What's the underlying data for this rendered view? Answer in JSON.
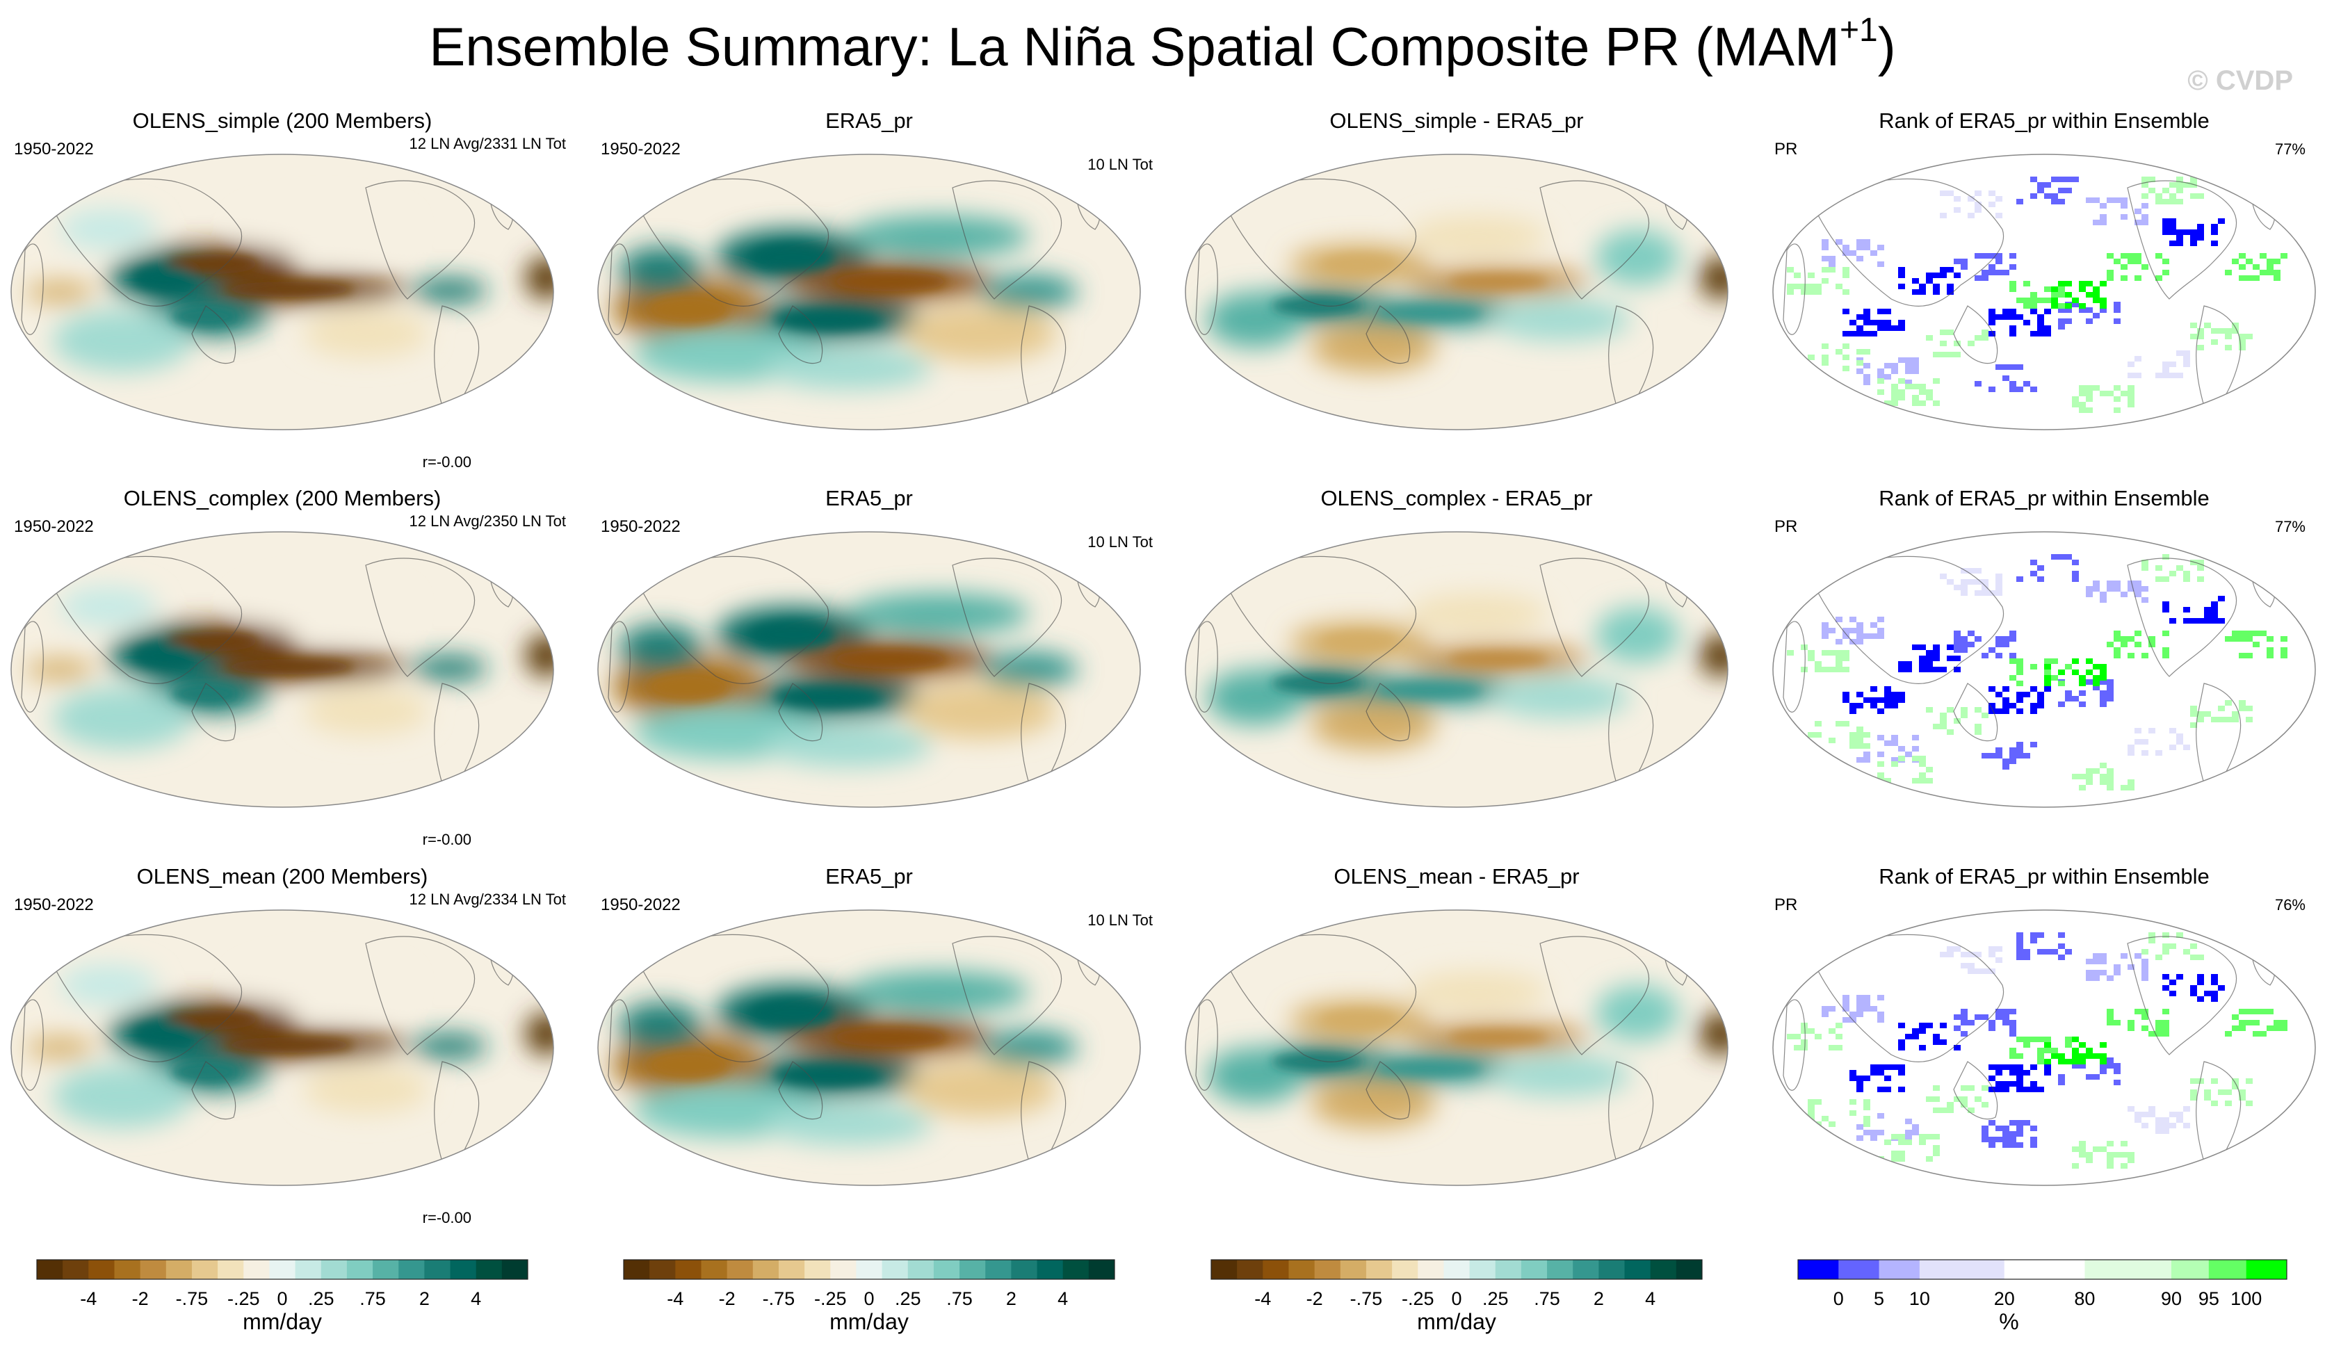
{
  "title_main": "Ensemble Summary: La Niña Spatial Composite PR (MAM",
  "title_sup": "+1",
  "title_close": ")",
  "watermark": "© CVDP",
  "chart_data": {
    "type": "heatmap",
    "variable": "PR",
    "season": "MAM+1",
    "colors": {
      "brown_green": [
        "#543005",
        "#6e400c",
        "#8c510a",
        "#a8711f",
        "#bf8b3f",
        "#d4ad66",
        "#e6c98f",
        "#f2e2bb",
        "#f6f0e2",
        "#e8f4f2",
        "#c7eae5",
        "#a2dbd2",
        "#80cdc1",
        "#57b2a6",
        "#35978f",
        "#1a7d75",
        "#01665e",
        "#00503f",
        "#003c30"
      ],
      "rank": [
        "#0000ff",
        "#6464ff",
        "#b4b4ff",
        "#e2e2fb",
        "#ffffff",
        "#e0fce0",
        "#b4ffb4",
        "#64ff64",
        "#00ff00"
      ]
    },
    "rows": [
      {
        "ens_title": "OLENS_simple (200 Members)",
        "ens_color": "#0c7a85",
        "period": "1950-2022",
        "ens_info": "12 LN Avg/2331 LN Tot",
        "r_value": "r=-0.00",
        "obs_title": "ERA5_pr",
        "obs_period": "1950-2022",
        "obs_info": "10 LN Tot",
        "diff_title": "OLENS_simple - ERA5_pr",
        "rank_title": "Rank of ERA5_pr within Ensemble",
        "rank_var": "PR",
        "rank_pct": "77%"
      },
      {
        "ens_title": "OLENS_complex (200 Members)",
        "ens_color": "#5e8a64",
        "period": "1950-2022",
        "ens_info": "12 LN Avg/2350 LN Tot",
        "r_value": "r=-0.00",
        "obs_title": "ERA5_pr",
        "obs_period": "1950-2022",
        "obs_info": "10 LN Tot",
        "diff_title": "OLENS_complex - ERA5_pr",
        "rank_title": "Rank of ERA5_pr within Ensemble",
        "rank_var": "PR",
        "rank_pct": "77%"
      },
      {
        "ens_title": "OLENS_mean (200 Members)",
        "ens_color": "#c9b66a",
        "period": "1950-2022",
        "ens_info": "12 LN Avg/2334 LN Tot",
        "r_value": "r=-0.00",
        "obs_title": "ERA5_pr",
        "obs_period": "1950-2022",
        "obs_info": "10 LN Tot",
        "diff_title": "OLENS_mean - ERA5_pr",
        "rank_title": "Rank of ERA5_pr within Ensemble",
        "rank_var": "PR",
        "rank_pct": "76%"
      }
    ],
    "colorbar_pr": {
      "ticks": [
        "-4",
        "-2",
        "-.75",
        "-.25",
        "0",
        ".25",
        ".75",
        "2",
        "4"
      ],
      "unit": "mm/day"
    },
    "colorbar_rank": {
      "ticks": [
        "0",
        "5",
        "10",
        "20",
        "80",
        "90",
        "95",
        "100"
      ],
      "unit": "%"
    }
  }
}
